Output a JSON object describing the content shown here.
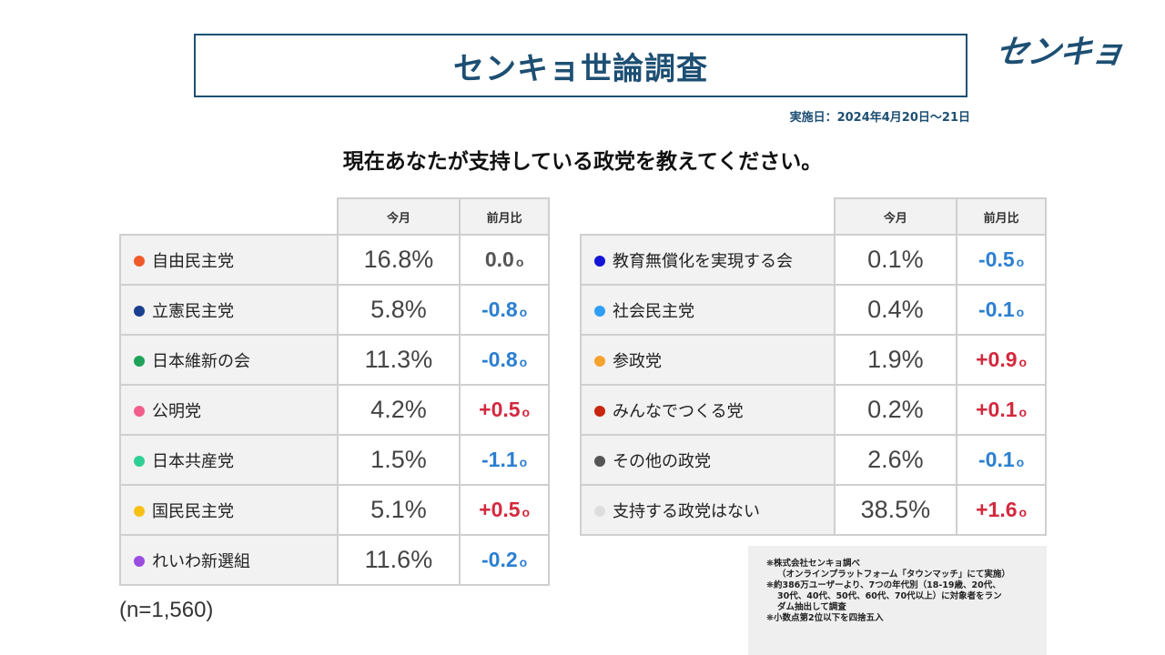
{
  "header": {
    "title": "センキョ世論調査",
    "logo": "センキョ",
    "date": "実施日：2024年4月20日～21日",
    "question": "現在あなたが支持している政党を教えてください。"
  },
  "table_headers": {
    "current": "今月",
    "diff": "前月比"
  },
  "left_rows": [
    {
      "name": "自由民主党",
      "pct": "16.8%",
      "diff": "0.0",
      "unit": "o",
      "color": "#f05a28",
      "sign": "zero"
    },
    {
      "name": "立憲民主党",
      "pct": "5.8%",
      "diff": "-0.8",
      "unit": "o",
      "color": "#1a3f8f",
      "sign": "neg"
    },
    {
      "name": "日本維新の会",
      "pct": "11.3%",
      "diff": "-0.8",
      "unit": "o",
      "color": "#1fa35b",
      "sign": "neg"
    },
    {
      "name": "公明党",
      "pct": "4.2%",
      "diff": "+0.5",
      "unit": "o",
      "color": "#f25e8c",
      "sign": "pos"
    },
    {
      "name": "日本共産党",
      "pct": "1.5%",
      "diff": "-1.1",
      "unit": "o",
      "color": "#2ecf95",
      "sign": "neg"
    },
    {
      "name": "国民民主党",
      "pct": "5.1%",
      "diff": "+0.5",
      "unit": "o",
      "color": "#f7c015",
      "sign": "pos"
    },
    {
      "name": "れいわ新選組",
      "pct": "11.6%",
      "diff": "-0.2",
      "unit": "o",
      "color": "#9b4de0",
      "sign": "neg"
    }
  ],
  "right_rows": [
    {
      "name": "教育無償化を実現する会",
      "pct": "0.1%",
      "diff": "-0.5",
      "unit": "o",
      "color": "#1414d6",
      "sign": "neg"
    },
    {
      "name": "社会民主党",
      "pct": "0.4%",
      "diff": "-0.1",
      "unit": "o",
      "color": "#2f9ff5",
      "sign": "neg"
    },
    {
      "name": "参政党",
      "pct": "1.9%",
      "diff": "+0.9",
      "unit": "o",
      "color": "#f5a32e",
      "sign": "pos"
    },
    {
      "name": "みんなでつくる党",
      "pct": "0.2%",
      "diff": "+0.1",
      "unit": "o",
      "color": "#c8260f",
      "sign": "pos"
    },
    {
      "name": "その他の政党",
      "pct": "2.6%",
      "diff": "-0.1",
      "unit": "o",
      "color": "#555555",
      "sign": "neg"
    },
    {
      "name": "支持する政党はない",
      "pct": "38.5%",
      "diff": "+1.6",
      "unit": "o",
      "color": "#dddddd",
      "sign": "pos"
    }
  ],
  "sample": "(n=1,560)",
  "notes": [
    "❋株式会社センキョ調べ",
    "（オンラインプラットフォーム「タウンマッチ」にて実施）",
    "❋約386万ユーザーより、7つの年代別（18-19歳、20代、",
    "30代、40代、50代、60代、70代以上）に対象者をラン",
    "ダム抽出して調査",
    "❋小数点第2位以下を四捨五入"
  ]
}
